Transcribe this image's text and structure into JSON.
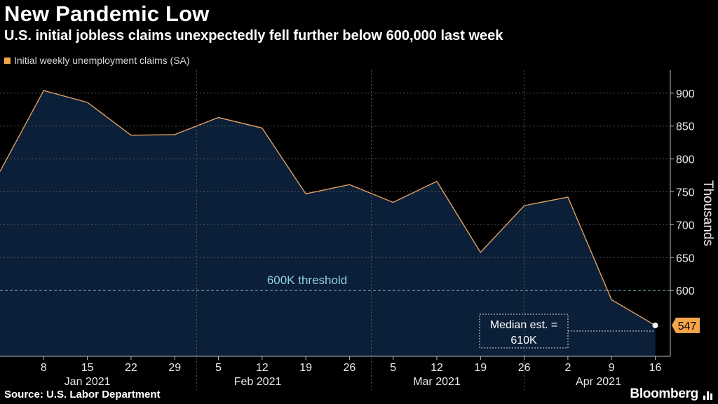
{
  "header": {
    "title": "New Pandemic Low",
    "subtitle": "U.S. initial jobless claims unexpectedly fell further below 600,000 last week"
  },
  "legend": {
    "label": "Initial weekly unemployment claims (SA)"
  },
  "footer": {
    "source": "Source: U.S. Labor Department",
    "brand": "Bloomberg"
  },
  "colors": {
    "line": "#e0a060",
    "area": "#0c1f38",
    "accent": "#f4a64a",
    "annotation": "#8fd0e0"
  },
  "chart_data": {
    "type": "area",
    "x": [
      "2021-01-01",
      "2021-01-08",
      "2021-01-15",
      "2021-01-22",
      "2021-01-29",
      "2021-02-05",
      "2021-02-12",
      "2021-02-19",
      "2021-02-26",
      "2021-03-05",
      "2021-03-12",
      "2021-03-19",
      "2021-03-26",
      "2021-04-02",
      "2021-04-09",
      "2021-04-16"
    ],
    "series": [
      {
        "name": "Initial weekly unemployment claims (SA)",
        "values": [
          781,
          904,
          886,
          836,
          837,
          863,
          847,
          747,
          761,
          734,
          766,
          658,
          729,
          742,
          586,
          547
        ]
      }
    ],
    "ylabel": "Thousands",
    "ylim": [
      500,
      935
    ],
    "yticks": [
      600,
      650,
      700,
      750,
      800,
      850,
      900
    ],
    "xtick_labels": [
      "8",
      "15",
      "22",
      "29",
      "5",
      "12",
      "19",
      "26",
      "5",
      "12",
      "19",
      "26",
      "2",
      "9",
      "16"
    ],
    "month_labels": [
      "Jan 2021",
      "Feb 2021",
      "Mar 2021",
      "Apr 2021"
    ],
    "reference_line": {
      "value": 600,
      "label": "600K threshold"
    },
    "annotations": [
      {
        "text_line1": "Median est. =",
        "text_line2": "610K"
      },
      {
        "text": "547",
        "value": 547
      }
    ]
  }
}
